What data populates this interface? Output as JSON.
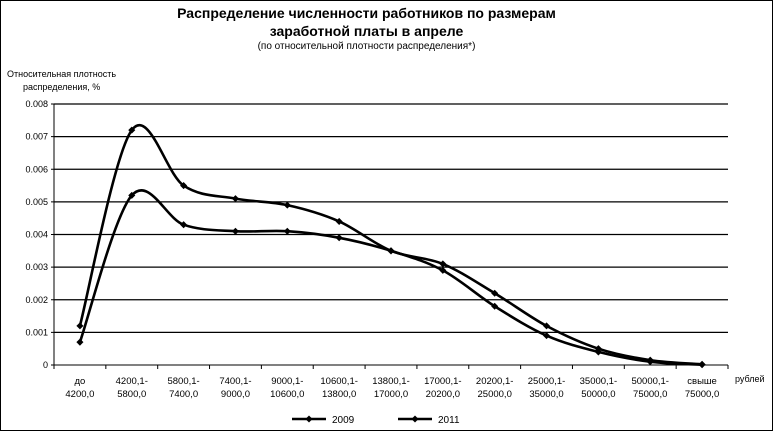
{
  "chart_data": {
    "type": "line",
    "title": "Распределение численности работников по размерам",
    "title_line2": "заработной платы в апреле",
    "subtitle": "(по относительной плотности распределения*)",
    "ylabel_line1": "Относительная плотность",
    "ylabel_line2": "распределения, %",
    "x_unit": "рублей",
    "ylim": [
      0,
      0.008
    ],
    "yticks": [
      "0",
      "0.001",
      "0.002",
      "0.003",
      "0.004",
      "0.005",
      "0.006",
      "0.007",
      "0.008"
    ],
    "grid": true,
    "legend_position": "bottom",
    "categories": [
      [
        "до",
        "4200,0"
      ],
      [
        "4200,1-",
        "5800,0"
      ],
      [
        "5800,1-",
        "7400,0"
      ],
      [
        "7400,1-",
        "9000,0"
      ],
      [
        "9000,1-",
        "10600,0"
      ],
      [
        "10600,1-",
        "13800,0"
      ],
      [
        "13800,1-",
        "17000,0"
      ],
      [
        "17000,1-",
        "20200,0"
      ],
      [
        "20200,1-",
        "25000,0"
      ],
      [
        "25000,1-",
        "35000,0"
      ],
      [
        "35000,1-",
        "50000,0"
      ],
      [
        "50000,1-",
        "75000,0"
      ],
      [
        "свыше",
        "75000,0"
      ]
    ],
    "series": [
      {
        "name": "2009",
        "values": [
          0.0012,
          0.0072,
          0.0055,
          0.0051,
          0.0049,
          0.0044,
          0.0035,
          0.0031,
          0.0022,
          0.0012,
          0.0005,
          0.00015,
          2e-05
        ]
      },
      {
        "name": "2011",
        "values": [
          0.0007,
          0.0052,
          0.0043,
          0.0041,
          0.0041,
          0.0039,
          0.0035,
          0.0029,
          0.0018,
          0.0009,
          0.0004,
          0.0001,
          1e-05
        ]
      }
    ]
  }
}
